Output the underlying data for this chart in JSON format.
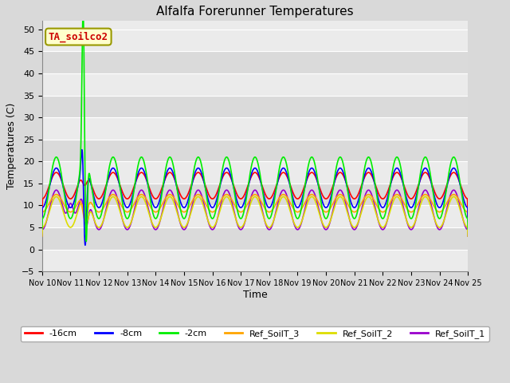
{
  "title": "Alfalfa Forerunner Temperatures",
  "xlabel": "Time",
  "ylabel": "Temperatures (C)",
  "ylim": [
    -5,
    52
  ],
  "yticks": [
    -5,
    0,
    5,
    10,
    15,
    20,
    25,
    30,
    35,
    40,
    45,
    50
  ],
  "annotation_text": "TA_soilco2",
  "annotation_color": "#CC0000",
  "annotation_bg": "#FFFFCC",
  "annotation_border": "#999900",
  "series": {
    "neg16cm": {
      "label": "-16cm",
      "color": "#FF0000"
    },
    "neg8cm": {
      "label": "-8cm",
      "color": "#0000FF"
    },
    "neg2cm": {
      "label": "-2cm",
      "color": "#00EE00"
    },
    "ref3": {
      "label": "Ref_SoilT_3",
      "color": "#FFA500"
    },
    "ref2": {
      "label": "Ref_SoilT_2",
      "color": "#DDDD00"
    },
    "ref1": {
      "label": "Ref_SoilT_1",
      "color": "#9900CC"
    }
  },
  "bg_color": "#D9D9D9",
  "plot_bg_light": "#EBEBEB",
  "plot_bg_dark": "#DADADA",
  "grid_color": "#FFFFFF",
  "n_days": 15,
  "points_per_day": 144,
  "figsize": [
    6.4,
    4.8
  ],
  "dpi": 100
}
